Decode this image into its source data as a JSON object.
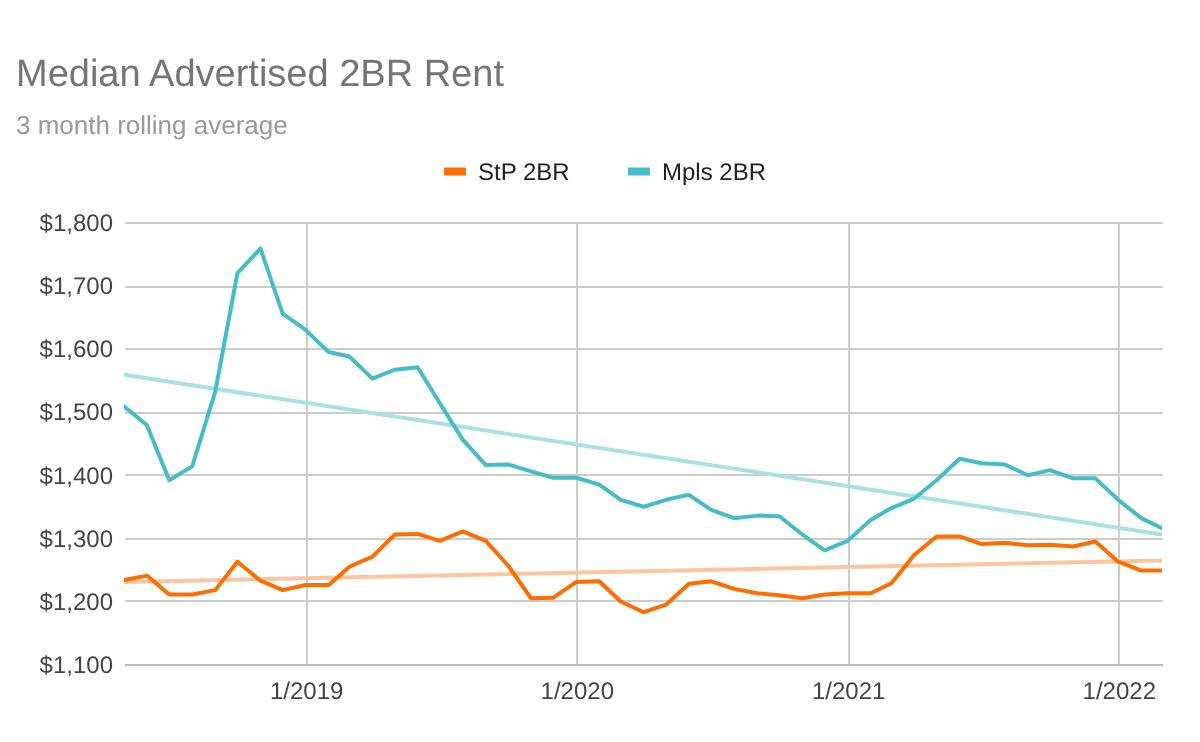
{
  "chart_data": {
    "type": "line",
    "title": "Median Advertised 2BR Rent",
    "subtitle": "3 month rolling average",
    "x": [
      "2018-05",
      "2018-06",
      "2018-07",
      "2018-08",
      "2018-09",
      "2018-10",
      "2018-11",
      "2018-12",
      "2019-01",
      "2019-02",
      "2019-03",
      "2019-04",
      "2019-05",
      "2019-06",
      "2019-07",
      "2019-08",
      "2019-09",
      "2019-10",
      "2019-11",
      "2019-12",
      "2020-01",
      "2020-02",
      "2020-03",
      "2020-04",
      "2020-05",
      "2020-06",
      "2020-07",
      "2020-08",
      "2020-09",
      "2020-10",
      "2020-11",
      "2020-12",
      "2021-01",
      "2021-02",
      "2021-03",
      "2021-04",
      "2021-05",
      "2021-06",
      "2021-07",
      "2021-08",
      "2021-09",
      "2021-10",
      "2021-11",
      "2021-12",
      "2022-01",
      "2022-02",
      "2022-03"
    ],
    "series": [
      {
        "type": "line",
        "color": "#fcc59d",
        "x": [
          "2018-05",
          "2022-03"
        ],
        "values": [
          1230,
          1264
        ]
      },
      {
        "type": "line",
        "color": "#a9e0e4",
        "x": [
          "2018-05",
          "2022-03"
        ],
        "values": [
          1558,
          1305
        ]
      },
      {
        "name": "StP 2BR",
        "color": "#ff6d01",
        "values": [
          1233,
          1240,
          1210,
          1210,
          1217,
          1262,
          1232,
          1217,
          1225,
          1225,
          1254,
          1270,
          1305,
          1306,
          1295,
          1310,
          1295,
          1256,
          1204,
          1205,
          1230,
          1231,
          1199,
          1182,
          1194,
          1227,
          1231,
          1219,
          1212,
          1209,
          1204,
          1210,
          1212,
          1212,
          1228,
          1273,
          1302,
          1302,
          1290,
          1292,
          1288,
          1289,
          1286,
          1294,
          1262,
          1248,
          1248
        ]
      },
      {
        "name": "Mpls 2BR",
        "color": "#46bdc6",
        "values": [
          1508,
          1478,
          1391,
          1413,
          1531,
          1719,
          1758,
          1655,
          1629,
          1594,
          1587,
          1552,
          1566,
          1570,
          1513,
          1455,
          1415,
          1416,
          1405,
          1395,
          1395,
          1384,
          1360,
          1349,
          1360,
          1368,
          1344,
          1331,
          1335,
          1334,
          1305,
          1280,
          1295,
          1328,
          1347,
          1362,
          1391,
          1425,
          1418,
          1416,
          1399,
          1407,
          1394,
          1394,
          1360,
          1331,
          1315
        ]
      }
    ],
    "xlim": [
      "2018-05",
      "2022-03"
    ],
    "xticks": [
      {
        "value": "2019-01",
        "label": "1/2019"
      },
      {
        "value": "2020-01",
        "label": "1/2020"
      },
      {
        "value": "2021-01",
        "label": "1/2021"
      },
      {
        "value": "2022-01",
        "label": "1/2022"
      }
    ],
    "ylim": [
      1100,
      1800
    ],
    "yticks": [
      {
        "value": 1100,
        "label": "$1,100"
      },
      {
        "value": 1200,
        "label": "$1,200"
      },
      {
        "value": 1300,
        "label": "$1,300"
      },
      {
        "value": 1400,
        "label": "$1,400"
      },
      {
        "value": 1500,
        "label": "$1,500"
      },
      {
        "value": 1600,
        "label": "$1,600"
      },
      {
        "value": 1700,
        "label": "$1,700"
      },
      {
        "value": 1800,
        "label": "$1,800"
      }
    ],
    "grid": true,
    "legend": "top"
  }
}
